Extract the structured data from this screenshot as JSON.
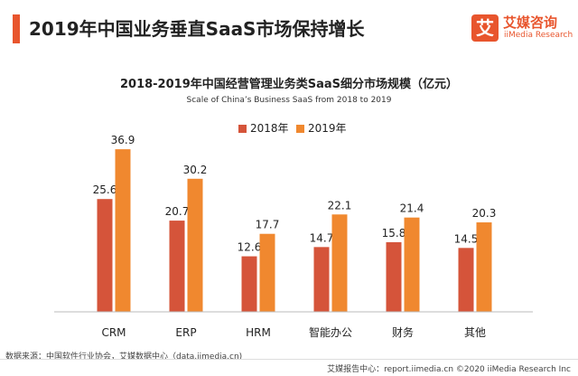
{
  "header": {
    "title": "2019年中国业务垂直SaaS市场保持增长",
    "accent_color": "#e8552d"
  },
  "logo": {
    "mark": "艾",
    "name_cn": "艾媒咨询",
    "name_en": "iiMedia Research",
    "color": "#e8552d"
  },
  "chart_data": {
    "type": "bar",
    "title": "2018-2019年中国经营管理业务类SaaS细分市场规模（亿元）",
    "subtitle": "Scale of China’s Business SaaS from 2018 to 2019",
    "categories": [
      "CRM",
      "ERP",
      "HRM",
      "智能办公",
      "财务",
      "其他"
    ],
    "series": [
      {
        "name": "2018年",
        "color": "#d5543a",
        "values": [
          25.6,
          20.7,
          12.6,
          14.7,
          15.8,
          14.5
        ]
      },
      {
        "name": "2019年",
        "color": "#f0882f",
        "values": [
          36.9,
          30.2,
          17.7,
          22.1,
          21.4,
          20.3
        ]
      }
    ],
    "ylim": [
      0,
      40
    ],
    "grid": false,
    "legend_position": "top-center",
    "xlabel": "",
    "ylabel": ""
  },
  "footer": {
    "source": "数据来源：中国软件行业协会，艾媒数据中心（data.iimedia.cn)",
    "right": "艾媒报告中心：report.iimedia.cn   ©2020 iiMedia Research Inc"
  }
}
